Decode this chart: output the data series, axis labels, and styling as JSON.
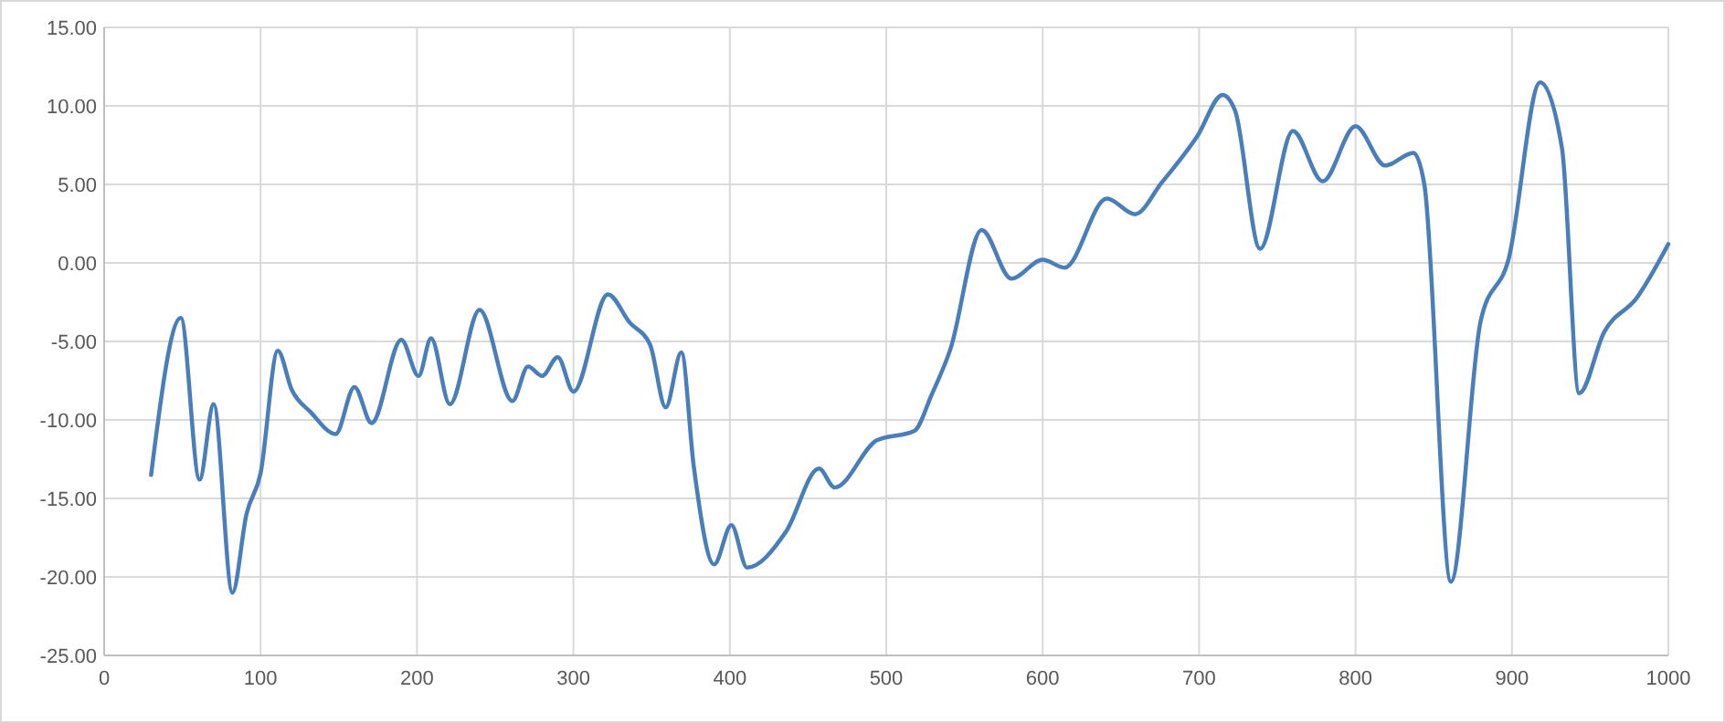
{
  "chart_data": {
    "type": "line",
    "x": [
      30,
      49,
      61,
      70,
      82,
      91,
      100,
      111,
      120,
      132,
      148,
      160,
      171,
      190,
      201,
      209,
      221,
      240,
      261,
      271,
      280,
      290,
      300,
      322,
      336,
      349,
      359,
      369,
      377,
      390,
      401,
      411,
      436,
      457,
      467,
      494,
      518,
      529,
      541,
      561,
      580,
      600,
      614,
      641,
      659,
      676,
      699,
      715,
      723,
      739,
      760,
      779,
      800,
      819,
      837,
      844,
      861,
      880,
      898,
      918,
      932,
      943,
      959,
      980,
      1000
    ],
    "series": [
      {
        "color": "#4a7ebb",
        "values": [
          -13.5,
          -3.5,
          -13.8,
          -9,
          -21,
          -16,
          -13.4,
          -5.6,
          -8.1,
          -9.5,
          -10.9,
          -7.9,
          -10.2,
          -4.9,
          -7.2,
          -4.8,
          -9,
          -3,
          -8.8,
          -6.6,
          -7.2,
          -6,
          -8.2,
          -2,
          -3.8,
          -5.2,
          -9.2,
          -5.7,
          -13,
          -19.2,
          -16.7,
          -19.4,
          -17.1,
          -13.1,
          -14.3,
          -11.3,
          -10.7,
          -8.4,
          -5.5,
          2.1,
          -1,
          0.2,
          -0.3,
          4.1,
          3.1,
          5.1,
          8.1,
          10.7,
          9.7,
          0.9,
          8.4,
          5.2,
          8.7,
          6.2,
          7,
          5,
          -20.3,
          -3.7,
          0.3,
          11.5,
          7.3,
          -8.3,
          -4.4,
          -2.2,
          1.2
        ]
      }
    ],
    "xlim": [
      0,
      1000
    ],
    "xticks": [
      0,
      100,
      200,
      300,
      400,
      500,
      600,
      700,
      800,
      900,
      1000
    ],
    "ylim": [
      -25,
      15
    ],
    "yticks": [
      {
        "value": -25,
        "label": "-25.00"
      },
      {
        "value": -20,
        "label": "-20.00"
      },
      {
        "value": -15,
        "label": "-15.00"
      },
      {
        "value": -10,
        "label": "-10.00"
      },
      {
        "value": -5,
        "label": "-5.00"
      },
      {
        "value": 0,
        "label": "0.00"
      },
      {
        "value": 5,
        "label": "5.00"
      },
      {
        "value": 10,
        "label": "10.00"
      },
      {
        "value": 15,
        "label": "15.00"
      }
    ],
    "grid": true,
    "marker": "none",
    "line_style": "solid"
  }
}
